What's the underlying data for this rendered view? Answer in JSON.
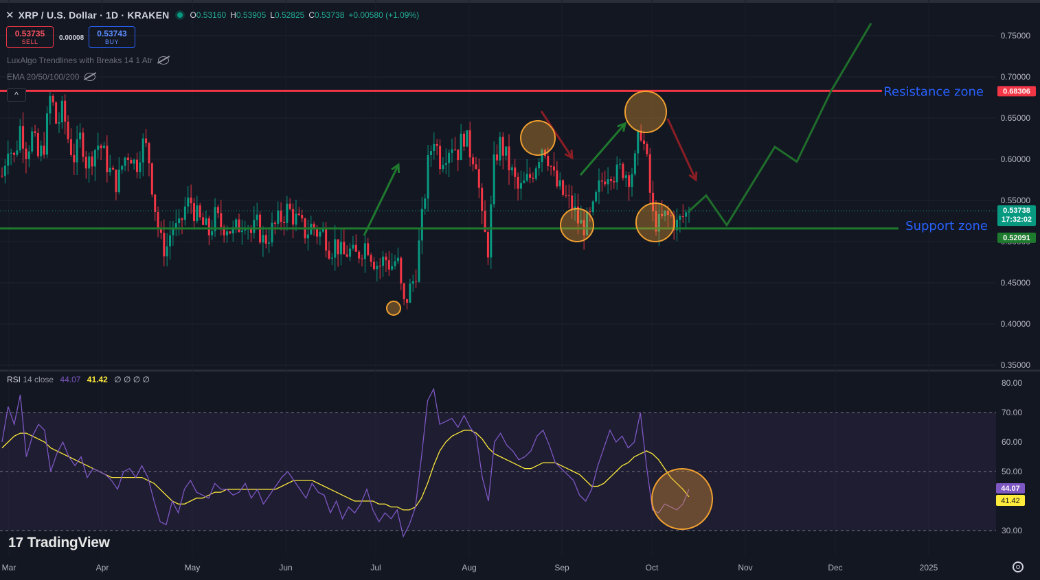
{
  "header": {
    "close_glyph": "✕",
    "title": "XRP / U.S. Dollar · 1D · KRAKEN",
    "open_label": "O",
    "open": "0.53160",
    "high_label": "H",
    "high": "0.53905",
    "low_label": "L",
    "low": "0.52825",
    "close_label": "C",
    "close": "0.53738",
    "change": "+0.00580 (+1.09%)"
  },
  "trade": {
    "sell_price": "0.53735",
    "sell_label": "SELL",
    "spread": "0.00008",
    "buy_price": "0.53743",
    "buy_label": "BUY"
  },
  "indicators": {
    "trendlines": "LuxAlgo Trendlines with Breaks 14 1 Atr",
    "ema": "EMA 20/50/100/200",
    "collapse_glyph": "^"
  },
  "rsi_header": {
    "name": "RSI",
    "params": "14 close",
    "value": "44.07",
    "ma_value": "41.42",
    "placeholders": "∅ ∅ ∅ ∅"
  },
  "logo": {
    "mark": "17",
    "text": "TradingView"
  },
  "icons": [
    "close-icon",
    "eye-hidden-icon",
    "settings-icon",
    "tradingview-logo-icon"
  ],
  "colors": {
    "background": "#131722",
    "bull": "#089981",
    "bear": "#f23645",
    "resistance": "#f23645",
    "support": "#1e7b2e",
    "projection": "#1f6e2b",
    "circle": "#f0a030",
    "rsi": "#7e57c2",
    "rsi_ma": "#ffeb3b"
  },
  "chart_data": [
    {
      "type": "candlestick",
      "title": "XRP / U.S. Dollar · 1D · KRAKEN",
      "x_tick_labels": [
        "Mar",
        "Apr",
        "May",
        "Jun",
        "Jul",
        "Aug",
        "Sep",
        "Oct",
        "Nov",
        "Dec",
        "2025"
      ],
      "y_tick_labels": [
        "0.75000",
        "0.70000",
        "0.65000",
        "0.60000",
        "0.55000",
        "0.50000",
        "0.45000",
        "0.40000",
        "0.35000"
      ],
      "ylim": [
        0.34,
        0.765
      ],
      "price_series_sampled_close": [
        0.58,
        0.62,
        0.6,
        0.64,
        0.61,
        0.63,
        0.6,
        0.62,
        0.68,
        0.64,
        0.66,
        0.62,
        0.6,
        0.63,
        0.59,
        0.61,
        0.62,
        0.6,
        0.58,
        0.57,
        0.6,
        0.61,
        0.59,
        0.62,
        0.61,
        0.55,
        0.5,
        0.49,
        0.52,
        0.51,
        0.54,
        0.55,
        0.53,
        0.52,
        0.51,
        0.53,
        0.52,
        0.52,
        0.51,
        0.52,
        0.53,
        0.51,
        0.52,
        0.5,
        0.51,
        0.52,
        0.53,
        0.54,
        0.53,
        0.52,
        0.51,
        0.52,
        0.51,
        0.51,
        0.49,
        0.5,
        0.48,
        0.49,
        0.48,
        0.49,
        0.5,
        0.48,
        0.47,
        0.48,
        0.47,
        0.48,
        0.42,
        0.44,
        0.46,
        0.52,
        0.59,
        0.63,
        0.6,
        0.61,
        0.62,
        0.61,
        0.63,
        0.61,
        0.6,
        0.52,
        0.49,
        0.6,
        0.62,
        0.6,
        0.58,
        0.56,
        0.57,
        0.58,
        0.6,
        0.62,
        0.6,
        0.57,
        0.56,
        0.55,
        0.54,
        0.52,
        0.52,
        0.53,
        0.56,
        0.58,
        0.59,
        0.58,
        0.59,
        0.58,
        0.59,
        0.64,
        0.6,
        0.53,
        0.52,
        0.53,
        0.53,
        0.52,
        0.53,
        0.537
      ],
      "last_price": "0.53738",
      "last_price_countdown": "17:32:02",
      "resistance": {
        "value": 0.68306,
        "label": "0.68306",
        "zone_label": "Resistance zone"
      },
      "support": {
        "value": 0.52091,
        "label": "0.52091",
        "zone_label": "Support zone"
      },
      "projection_path": [
        [
          0.537,
          0.537
        ],
        [
          0.556,
          0.556
        ],
        [
          0.52,
          0.52
        ],
        [
          0.615,
          0.615
        ],
        [
          0.597,
          0.597
        ],
        [
          0.683,
          0.683
        ],
        [
          0.765,
          0.765
        ]
      ],
      "highlight_circles": 5,
      "arrows": {
        "up": 3,
        "down": 2
      }
    },
    {
      "type": "line",
      "title": "RSI 14 close",
      "y_tick_labels": [
        "80.00",
        "70.00",
        "60.00",
        "50.00",
        "40.00",
        "30.00"
      ],
      "ylim": [
        25,
        82
      ],
      "band": [
        30,
        70
      ],
      "middle": 50,
      "series": [
        {
          "name": "RSI",
          "values": [
            60,
            72,
            66,
            76,
            55,
            62,
            66,
            64,
            50,
            56,
            60,
            55,
            52,
            55,
            48,
            51,
            50,
            49,
            47,
            44,
            50,
            51,
            48,
            52,
            48,
            40,
            33,
            32,
            40,
            36,
            44,
            47,
            43,
            42,
            41,
            46,
            44,
            44,
            42,
            43,
            46,
            41,
            44,
            39,
            42,
            45,
            48,
            50,
            47,
            44,
            41,
            46,
            43,
            42,
            36,
            40,
            34,
            38,
            36,
            39,
            44,
            37,
            33,
            36,
            34,
            37,
            28,
            32,
            38,
            55,
            74,
            78,
            66,
            67,
            68,
            65,
            69,
            65,
            62,
            48,
            40,
            60,
            63,
            59,
            57,
            54,
            55,
            57,
            62,
            64,
            59,
            53,
            51,
            49,
            47,
            42,
            40,
            44,
            52,
            58,
            64,
            60,
            62,
            58,
            60,
            70,
            52,
            37,
            36,
            39,
            38,
            37,
            39,
            44
          ]
        },
        {
          "name": "RSI MA",
          "values": [
            58,
            60,
            62,
            63,
            63,
            62,
            61,
            60,
            58,
            57,
            56,
            55,
            54,
            53,
            52,
            51,
            50,
            49,
            48,
            48,
            48,
            48,
            48,
            48,
            47,
            46,
            44,
            42,
            40,
            39,
            39,
            40,
            41,
            41,
            42,
            43,
            43,
            44,
            44,
            44,
            44,
            44,
            44,
            44,
            44,
            44,
            45,
            46,
            47,
            47,
            47,
            47,
            46,
            45,
            44,
            43,
            42,
            41,
            40,
            40,
            40,
            40,
            39,
            39,
            38,
            38,
            37,
            37,
            38,
            41,
            46,
            52,
            57,
            60,
            62,
            63,
            64,
            64,
            63,
            61,
            58,
            56,
            55,
            54,
            53,
            52,
            51,
            51,
            52,
            53,
            53,
            53,
            52,
            51,
            50,
            49,
            47,
            45,
            45,
            46,
            48,
            50,
            52,
            53,
            55,
            56,
            57,
            56,
            54,
            51,
            48,
            46,
            44,
            41.42
          ]
        }
      ],
      "current": {
        "rsi": "44.07",
        "ma": "41.42"
      },
      "highlight_circles": 1
    }
  ]
}
